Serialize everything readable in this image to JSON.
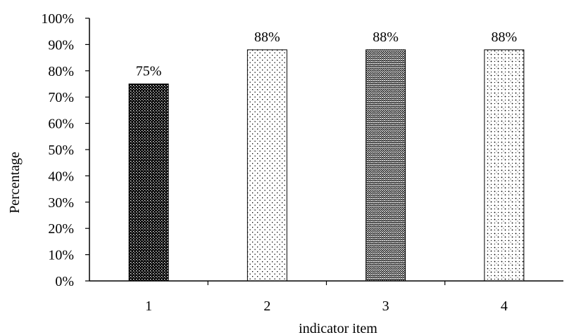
{
  "chart_data": {
    "type": "bar",
    "categories": [
      "1",
      "2",
      "3",
      "4"
    ],
    "values": [
      75,
      88,
      88,
      88
    ],
    "data_labels": [
      "75%",
      "88%",
      "88%",
      "88%"
    ],
    "title": "",
    "xlabel": "indicator item",
    "ylabel": "Percentage",
    "ylim": [
      0,
      100
    ],
    "yticks": [
      "0%",
      "10%",
      "20%",
      "30%",
      "40%",
      "50%",
      "60%",
      "70%",
      "80%",
      "90%",
      "100%"
    ],
    "grid": false,
    "legend": "none",
    "bar_patterns": [
      "dense-dots",
      "sparse-dots",
      "zigzag",
      "dotted-diamond"
    ],
    "colors": {
      "bar_ink": "#000000",
      "bar_background": "#ffffff",
      "axis": "#000000"
    }
  }
}
